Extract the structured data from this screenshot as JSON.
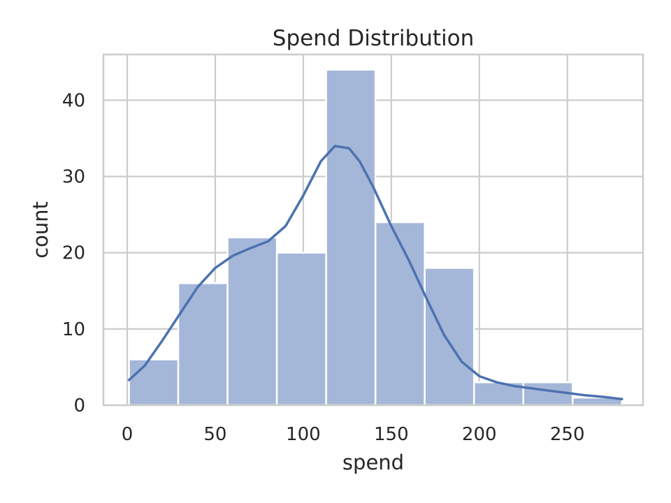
{
  "chart_data": {
    "type": "histogram",
    "title": "Spend Distribution",
    "xlabel": "spend",
    "ylabel": "count",
    "xlim": [
      -13.5,
      293
    ],
    "ylim": [
      0,
      46
    ],
    "xticks": [
      0,
      50,
      100,
      150,
      200,
      250
    ],
    "yticks": [
      0,
      10,
      20,
      30,
      40
    ],
    "grid": true,
    "bins": [
      {
        "x0": 1,
        "x1": 29,
        "count": 6
      },
      {
        "x0": 29,
        "x1": 57,
        "count": 16
      },
      {
        "x0": 57,
        "x1": 85,
        "count": 22
      },
      {
        "x0": 85,
        "x1": 113,
        "count": 20
      },
      {
        "x0": 113,
        "x1": 141,
        "count": 44
      },
      {
        "x0": 141,
        "x1": 169,
        "count": 24
      },
      {
        "x0": 169,
        "x1": 197,
        "count": 18
      },
      {
        "x0": 197,
        "x1": 225,
        "count": 3
      },
      {
        "x0": 225,
        "x1": 253,
        "count": 3
      },
      {
        "x0": 253,
        "x1": 281,
        "count": 1
      }
    ],
    "kde": {
      "x": [
        1,
        10,
        20,
        30,
        40,
        50,
        60,
        70,
        80,
        90,
        100,
        110,
        118,
        126,
        132,
        140,
        150,
        160,
        170,
        180,
        190,
        200,
        210,
        220,
        230,
        240,
        250,
        260,
        270,
        281
      ],
      "y": [
        3.3,
        5.2,
        8.5,
        12.0,
        15.5,
        18.0,
        19.6,
        20.6,
        21.5,
        23.5,
        27.5,
        32.0,
        34.0,
        33.7,
        32.0,
        28.5,
        23.5,
        19.0,
        14.0,
        9.2,
        5.7,
        3.8,
        3.0,
        2.5,
        2.2,
        1.9,
        1.6,
        1.3,
        1.1,
        0.8
      ]
    },
    "colors": {
      "bar_fill": "#a5b7d8",
      "bar_edge": "#ffffff",
      "kde_line": "#4c72b0",
      "grid": "#cccccc",
      "frame": "#cccccc",
      "text": "#262626"
    }
  }
}
